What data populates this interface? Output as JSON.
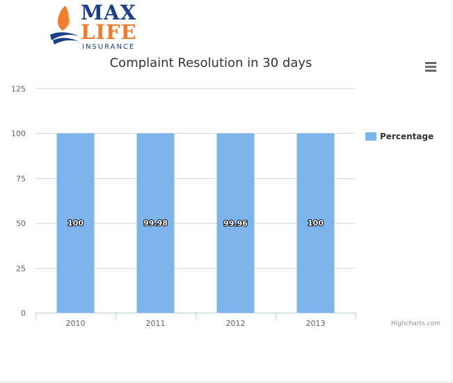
{
  "logo": {
    "line1": "MAX",
    "line2": "LIFE",
    "line3": "INSURANCE"
  },
  "chart_data": {
    "type": "bar",
    "title": "Complaint Resolution in 30 days",
    "categories": [
      "2010",
      "2011",
      "2012",
      "2013"
    ],
    "series": [
      {
        "name": "Percentage",
        "values": [
          100,
          99.98,
          99.96,
          100
        ],
        "color": "#7cb5ec"
      }
    ],
    "data_labels": [
      "100",
      "99.98",
      "99.96",
      "100"
    ],
    "y_ticks": [
      0,
      25,
      50,
      75,
      100,
      125
    ],
    "ylim": [
      0,
      125
    ],
    "grid": true,
    "legend_position": "right"
  },
  "credits": "Highcharts.com",
  "colors": {
    "bar": "#7cb5ec",
    "grid": "#d8d8d8",
    "axis": "#c0d0e0",
    "menu": "#666666"
  },
  "icons": {
    "menu": "hamburger-menu-icon",
    "logo_mark": "flame-icon"
  }
}
